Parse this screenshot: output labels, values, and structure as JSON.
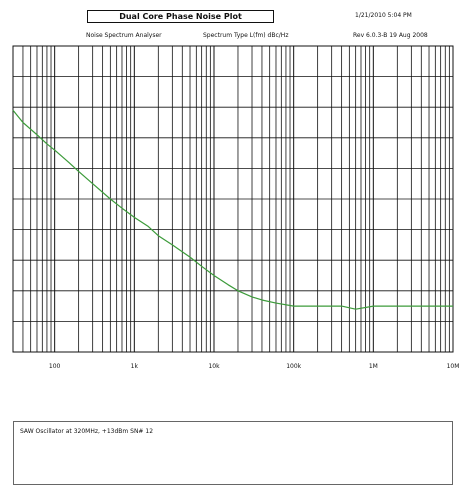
{
  "header": {
    "title": "Dual Core Phase Noise Plot",
    "timestamp": "1/21/2010  5:04 PM",
    "instrument": "Noise Spectrum Analyser",
    "spectrum_type": "Spectrum Type   L(fm) dBc/Hz",
    "revision": "Rev 6.0.3-B 19 Aug 2008"
  },
  "notes": {
    "text": "SAW Oscillator at 320MHz, +13dBm SN# 12"
  },
  "colors": {
    "trace": "#3c9b3a",
    "grid": "#111111",
    "background": "#ffffff"
  },
  "chart_data": {
    "type": "line",
    "title": "Dual Core Phase Noise Plot",
    "x_scale": "log",
    "xlim": [
      30,
      10000000
    ],
    "x_ticks": [
      {
        "value": 100,
        "label": "100"
      },
      {
        "value": 1000,
        "label": "1k"
      },
      {
        "value": 10000,
        "label": "10k"
      },
      {
        "value": 100000,
        "label": "100k"
      },
      {
        "value": 1000000,
        "label": "1M"
      },
      {
        "value": 10000000,
        "label": "10M"
      }
    ],
    "y_divisions": 10,
    "y_tick_labels": [],
    "grid": true,
    "series": [
      {
        "values": [
          [
            30,
            0.79
          ],
          [
            40,
            0.75
          ],
          [
            60,
            0.71
          ],
          [
            80,
            0.68
          ],
          [
            100,
            0.66
          ],
          [
            150,
            0.62
          ],
          [
            200,
            0.59
          ],
          [
            300,
            0.55
          ],
          [
            500,
            0.5
          ],
          [
            700,
            0.47
          ],
          [
            1000,
            0.44
          ],
          [
            1500,
            0.41
          ],
          [
            2000,
            0.38
          ],
          [
            3000,
            0.35
          ],
          [
            5000,
            0.31
          ],
          [
            7000,
            0.28
          ],
          [
            10000,
            0.25
          ],
          [
            15000,
            0.22
          ],
          [
            20000,
            0.2
          ],
          [
            30000,
            0.18
          ],
          [
            40000,
            0.17
          ],
          [
            60000,
            0.16
          ],
          [
            100000,
            0.15
          ],
          [
            200000,
            0.15
          ],
          [
            400000,
            0.15
          ],
          [
            600000,
            0.14
          ],
          [
            1000000,
            0.15
          ],
          [
            2000000,
            0.15
          ],
          [
            5000000,
            0.15
          ],
          [
            10000000,
            0.15
          ]
        ]
      }
    ]
  }
}
